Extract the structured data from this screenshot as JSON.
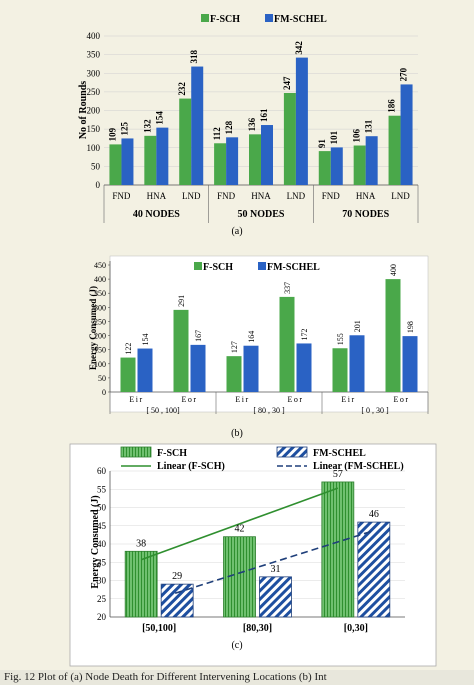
{
  "colors": {
    "green": "#4aa84a",
    "green_dark": "#2f7f2f",
    "blue": "#2a62c4",
    "blue_dark": "#1f3f7a",
    "hatch_blue": "#1e4fa0"
  },
  "chart_data": [
    {
      "type": "bar",
      "panel_label": "(a)",
      "ylabel": "No of Rounds",
      "ylim": [
        0,
        400
      ],
      "yticks": [
        0,
        50,
        100,
        150,
        200,
        250,
        300,
        350,
        400
      ],
      "categories": [
        "FND",
        "HNA",
        "LND",
        "FND",
        "HNA",
        "LND",
        "FND",
        "HNA",
        "LND"
      ],
      "groups": [
        "40 NODES",
        "50 NODES",
        "70 NODES"
      ],
      "series": [
        {
          "name": "F-SCH",
          "values": [
            109,
            132,
            232,
            112,
            136,
            247,
            91,
            106,
            186
          ]
        },
        {
          "name": "FM-SCHEL",
          "values": [
            125,
            154,
            318,
            128,
            161,
            342,
            101,
            131,
            270
          ]
        }
      ],
      "legend": "top"
    },
    {
      "type": "bar",
      "panel_label": "(b)",
      "ylabel": "Energy Consumed (J)",
      "ylim": [
        0,
        450
      ],
      "yticks": [
        0,
        50,
        100,
        150,
        200,
        250,
        300,
        350,
        400,
        450
      ],
      "categories": [
        "Eir",
        "Eor",
        "Eir",
        "Eor",
        "Eir",
        "Eor"
      ],
      "groups": [
        "[ 50 , 100]",
        "[ 80 , 30 ]",
        "[ 0 , 30 ]"
      ],
      "series": [
        {
          "name": "F-SCH",
          "values": [
            122,
            291,
            127,
            337,
            155,
            400
          ]
        },
        {
          "name": "FM-SCHEL",
          "values": [
            154,
            167,
            164,
            172,
            201,
            198
          ]
        }
      ],
      "legend": "top"
    },
    {
      "type": "bar",
      "panel_label": "(c)",
      "ylabel": "Energy Consumed  (J)",
      "ylim": [
        20,
        60
      ],
      "yticks": [
        20,
        25,
        30,
        35,
        40,
        45,
        50,
        55,
        60
      ],
      "categories": [
        "[50,100]",
        "[80,30]",
        "[0,30]"
      ],
      "series": [
        {
          "name": "F-SCH",
          "values": [
            38,
            42,
            57
          ]
        },
        {
          "name": "FM-SCHEL",
          "values": [
            29,
            31,
            46
          ]
        }
      ],
      "trendlines": [
        {
          "name": "Linear (F-SCH)",
          "start": 35.7,
          "end": 55.3
        },
        {
          "name": "Linear (FM-SCHEL)",
          "start": 26.5,
          "end": 43.5
        }
      ],
      "legend": "top"
    }
  ],
  "caption": "Fig. 12   Plot of (a) Node Death for Different Intervening Locations (b) Int"
}
